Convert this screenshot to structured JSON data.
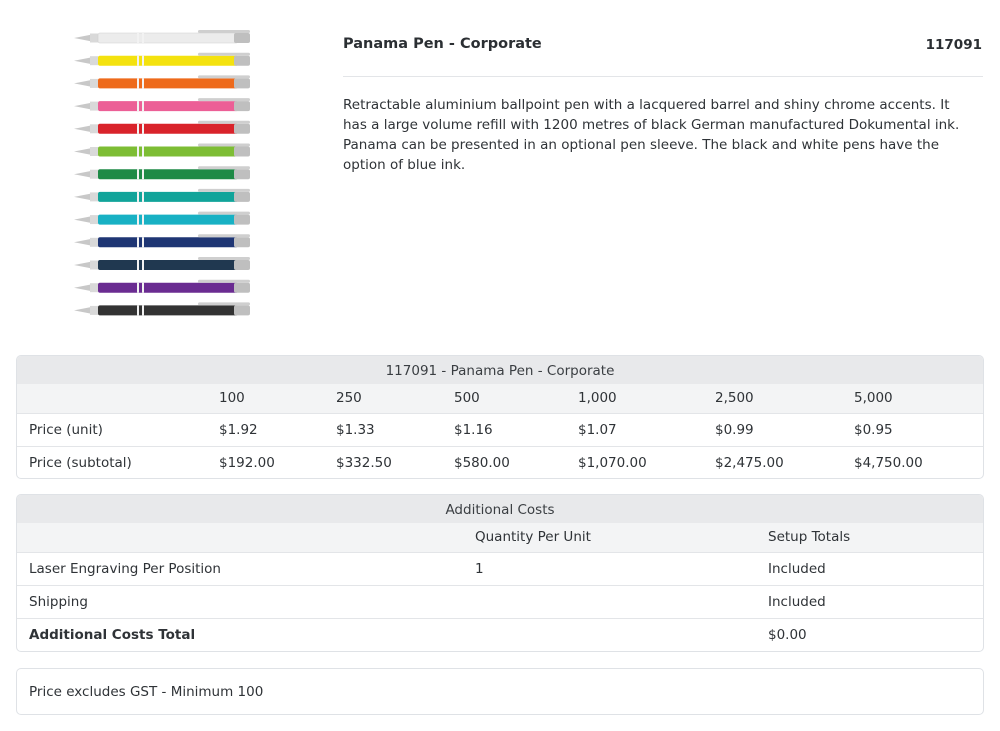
{
  "product": {
    "title": "Panama Pen - Corporate",
    "code": "117091",
    "description": "Retractable aluminium ballpoint pen with a lacquered barrel and shiny chrome accents. It has a large volume refill with 1200 metres of black German manufactured Dokumental ink. Panama can be presented in an optional pen sleeve. The black and white pens have the option of blue ink.",
    "image": {
      "icon": "pen-colours-image",
      "pen_colors": [
        "#ececec",
        "#f4e20f",
        "#ee6a1b",
        "#ec5f96",
        "#d9232b",
        "#7dbd34",
        "#1e8a46",
        "#11a49a",
        "#18b1c4",
        "#1f3674",
        "#203850",
        "#6a2c91",
        "#333333"
      ]
    }
  },
  "pricing": {
    "caption": "117091 - Panama Pen - Corporate",
    "quantities": [
      "100",
      "250",
      "500",
      "1,000",
      "2,500",
      "5,000"
    ],
    "rows": [
      {
        "label": "Price (unit)",
        "values": [
          "$1.92",
          "$1.33",
          "$1.16",
          "$1.07",
          "$0.99",
          "$0.95"
        ]
      },
      {
        "label": "Price (subtotal)",
        "values": [
          "$192.00",
          "$332.50",
          "$580.00",
          "$1,070.00",
          "$2,475.00",
          "$4,750.00"
        ]
      }
    ]
  },
  "additional": {
    "caption": "Additional Costs",
    "headers": {
      "qty": "Quantity Per Unit",
      "setup": "Setup Totals"
    },
    "rows": [
      {
        "label": "Laser Engraving Per Position",
        "qty": "1",
        "setup": "Included"
      },
      {
        "label": "Shipping",
        "qty": "",
        "setup": "Included"
      }
    ],
    "total": {
      "label": "Additional Costs Total",
      "setup": "$0.00"
    }
  },
  "note": "Price excludes GST - Minimum 100"
}
